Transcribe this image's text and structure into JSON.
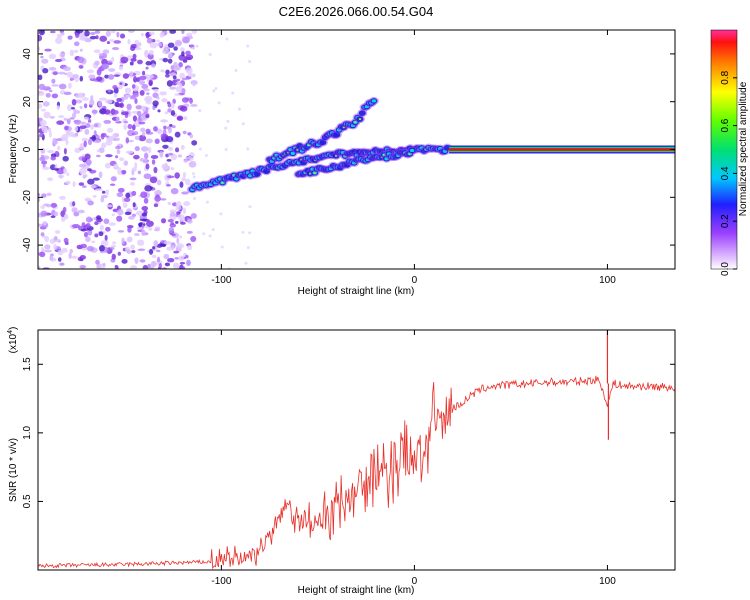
{
  "title": "C2E6.2026.066.00.54.G04",
  "colors": {
    "trace": "#e8302a",
    "axis": "#000000",
    "background": "#ffffff"
  },
  "chart_data": [
    {
      "type": "heatmap",
      "title": "C2E6.2026.066.00.54.G04",
      "xlabel": "Height of straight line (km)",
      "ylabel": "Frequency (Hz)",
      "xlim": [
        -195,
        135
      ],
      "ylim": [
        -50,
        50
      ],
      "x_ticks": [
        -100,
        0,
        100
      ],
      "x_tick_labels": [
        "-100",
        "0",
        "100"
      ],
      "y_ticks": [
        -40,
        -20,
        0,
        20,
        40
      ],
      "y_tick_labels": [
        "-40",
        "-20",
        "0",
        "20",
        "40"
      ],
      "colorbar": {
        "label": "Normalized spectral amplitude",
        "range": [
          0,
          1
        ],
        "ticks": [
          0.0,
          0.2,
          0.4,
          0.6,
          0.8
        ],
        "tick_labels": [
          "0.0",
          "0.2",
          "0.4",
          "0.6",
          "0.8"
        ]
      },
      "noise_region_x": [
        -195,
        -118
      ],
      "tone_track": {
        "x": [
          -115,
          -100,
          -80,
          -60,
          -40,
          -20,
          0,
          20,
          60,
          100,
          135
        ],
        "y": [
          -16,
          -13,
          -9,
          -5,
          -2,
          -1,
          0,
          0,
          0,
          0,
          0
        ],
        "steady_from_x": 18
      },
      "upper_track": {
        "x": [
          -75,
          -60,
          -45,
          -30,
          -20
        ],
        "y": [
          -4,
          0,
          5,
          12,
          22
        ]
      },
      "lower_track": {
        "x": [
          -60,
          -45,
          -30,
          -15,
          0
        ],
        "y": [
          -10,
          -8,
          -5,
          -3,
          -1
        ]
      }
    },
    {
      "type": "line",
      "xlabel": "Height of straight line (km)",
      "ylabel": "SNR (10 * v/v)",
      "y_multiplier": "(x10",
      "y_exponent": "4",
      "xlim": [
        -195,
        135
      ],
      "ylim": [
        0,
        1.75
      ],
      "x_ticks": [
        -100,
        0,
        100
      ],
      "x_tick_labels": [
        "-100",
        "0",
        "100"
      ],
      "y_ticks": [
        0.5,
        1.0,
        1.5
      ],
      "y_tick_labels": [
        "0.5",
        "1.0",
        "1.5"
      ],
      "series": [
        {
          "name": "SNR",
          "x": [
            -195,
            -150,
            -105,
            -90,
            -80,
            -72,
            -66,
            -62,
            -55,
            -45,
            -35,
            -25,
            -15,
            -8,
            -2,
            5,
            10,
            15,
            20,
            25,
            30,
            35,
            40,
            50,
            60,
            70,
            80,
            90,
            95,
            98,
            100,
            103,
            110,
            120,
            135
          ],
          "y": [
            0.03,
            0.04,
            0.06,
            0.08,
            0.15,
            0.3,
            0.5,
            0.35,
            0.35,
            0.4,
            0.55,
            0.65,
            0.7,
            0.78,
            0.8,
            0.9,
            1.05,
            1.1,
            1.18,
            1.22,
            1.28,
            1.32,
            1.34,
            1.35,
            1.36,
            1.37,
            1.37,
            1.38,
            1.39,
            1.3,
            1.2,
            1.36,
            1.34,
            1.34,
            1.33
          ]
        }
      ],
      "spikes": [
        {
          "x": 100,
          "y": 1.75
        },
        {
          "x": 100.5,
          "y": 0.95
        }
      ]
    }
  ]
}
